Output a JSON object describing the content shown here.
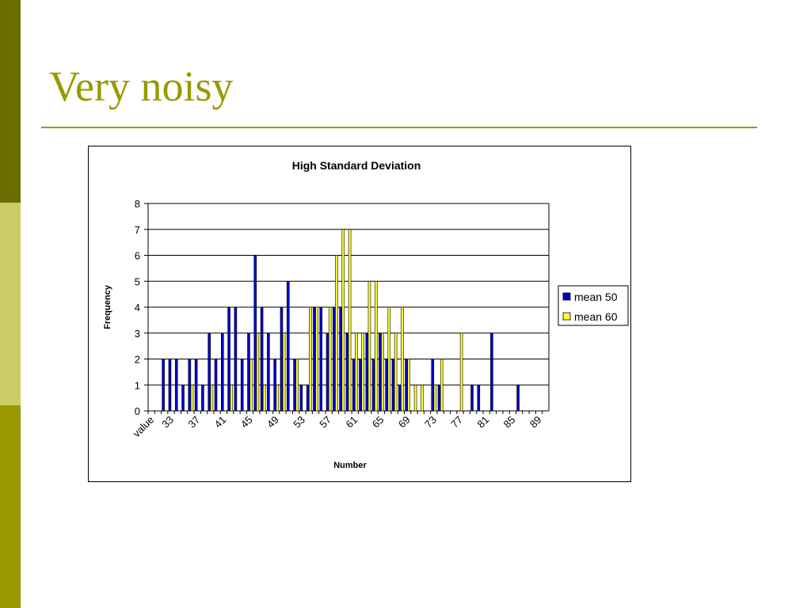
{
  "slide": {
    "title": "Very noisy",
    "colors": {
      "accent": "#999900",
      "band_dark": "#6b6b00",
      "band_light": "#cccc66"
    }
  },
  "chart_data": {
    "type": "bar",
    "title": "High Standard Deviation",
    "xlabel": "Number",
    "ylabel": "Frequency",
    "ylim": [
      0,
      8
    ],
    "yticks": [
      0,
      1,
      2,
      3,
      4,
      5,
      6,
      7,
      8
    ],
    "grid": true,
    "legend_position": "right",
    "categories": [
      "value",
      "31",
      "32",
      "33",
      "34",
      "35",
      "36",
      "37",
      "38",
      "39",
      "40",
      "41",
      "42",
      "43",
      "44",
      "45",
      "46",
      "47",
      "48",
      "49",
      "50",
      "51",
      "52",
      "53",
      "54",
      "55",
      "56",
      "57",
      "58",
      "59",
      "60",
      "61",
      "62",
      "63",
      "64",
      "65",
      "66",
      "67",
      "68",
      "69",
      "70",
      "71",
      "72",
      "73",
      "74",
      "75",
      "76",
      "77",
      "78",
      "79",
      "80",
      "81",
      "82",
      "83",
      "84",
      "85",
      "86",
      "87",
      "88",
      "89",
      "90"
    ],
    "tick_labels": [
      "value",
      "33",
      "37",
      "41",
      "45",
      "49",
      "53",
      "57",
      "61",
      "65",
      "69",
      "73",
      "77",
      "81",
      "85",
      "89"
    ],
    "series": [
      {
        "name": "mean 50",
        "color": "#0000cc",
        "values": [
          0,
          0,
          2,
          2,
          2,
          1,
          2,
          2,
          1,
          3,
          2,
          3,
          4,
          4,
          2,
          3,
          6,
          4,
          3,
          2,
          4,
          5,
          2,
          1,
          1,
          4,
          4,
          3,
          4,
          4,
          3,
          2,
          2,
          3,
          2,
          3,
          2,
          2,
          1,
          2,
          0,
          0,
          0,
          2,
          1,
          0,
          0,
          0,
          0,
          1,
          1,
          0,
          3,
          0,
          0,
          0,
          1,
          0,
          0,
          0,
          0
        ]
      },
      {
        "name": "mean 60",
        "color": "#ffff33",
        "values": [
          0,
          0,
          0,
          0,
          0,
          0,
          1,
          0,
          0,
          1,
          0,
          0,
          1,
          0,
          0,
          2,
          3,
          1,
          0,
          1,
          3,
          0,
          2,
          0,
          4,
          4,
          0,
          4,
          6,
          7,
          7,
          3,
          3,
          5,
          5,
          3,
          4,
          3,
          4,
          2,
          1,
          1,
          0,
          1,
          2,
          0,
          0,
          3,
          0,
          0,
          0,
          0,
          0,
          0,
          0,
          0,
          0,
          0,
          0,
          0,
          0
        ]
      }
    ]
  }
}
